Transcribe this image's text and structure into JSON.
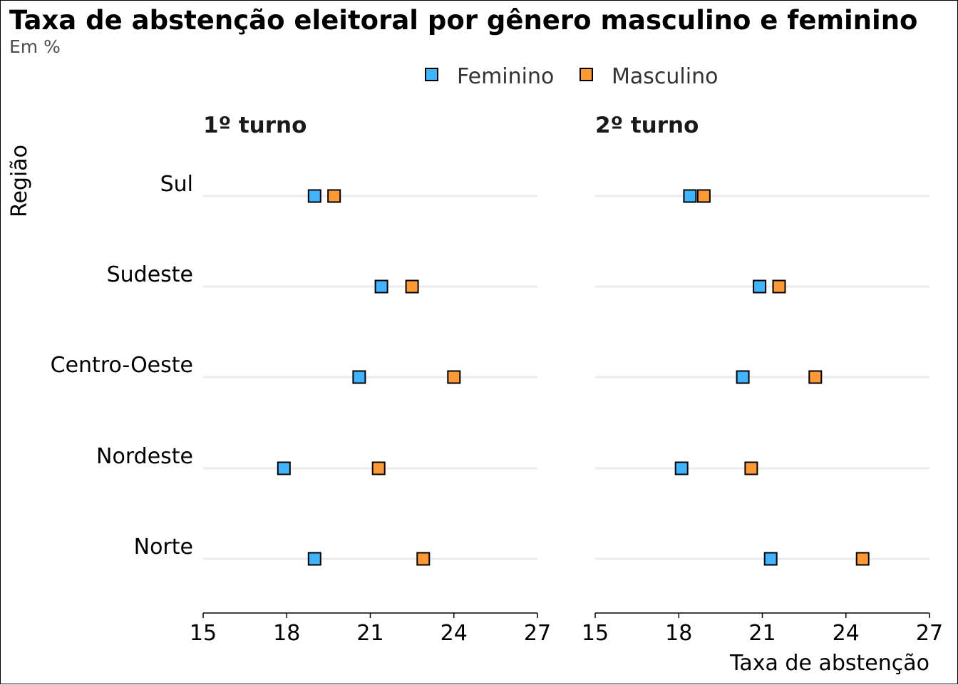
{
  "title": "Taxa de abstenção eleitoral por gênero masculino e feminino",
  "subtitle": "Em %",
  "chart_data": {
    "type": "scatter",
    "title": "Taxa de abstenção eleitoral por gênero masculino e feminino",
    "subtitle": "Em %",
    "xlabel": "Taxa de abstenção",
    "ylabel": "Região",
    "xlim": [
      15,
      27
    ],
    "x_ticks": [
      "15",
      "18",
      "21",
      "24",
      "27"
    ],
    "x_tick_values": [
      15,
      18,
      21,
      24,
      27
    ],
    "categories": [
      "Sul",
      "Sudeste",
      "Centro-Oeste",
      "Nordeste",
      "Norte"
    ],
    "legend": {
      "position": "top",
      "entries": [
        {
          "name": "Feminino",
          "color": "#3fb4ff"
        },
        {
          "name": "Masculino",
          "color": "#ff9933"
        }
      ]
    },
    "grid": "horizontal",
    "panels": [
      {
        "name": "1º turno",
        "series": [
          {
            "name": "Feminino",
            "color": "#3fb4ff",
            "values": [
              19.0,
              21.4,
              20.6,
              17.9,
              19.0
            ]
          },
          {
            "name": "Masculino",
            "color": "#ff9933",
            "values": [
              19.7,
              22.5,
              24.0,
              21.3,
              22.9
            ]
          }
        ]
      },
      {
        "name": "2º turno",
        "series": [
          {
            "name": "Feminino",
            "color": "#3fb4ff",
            "values": [
              18.4,
              20.9,
              20.3,
              18.1,
              21.3
            ]
          },
          {
            "name": "Masculino",
            "color": "#ff9933",
            "values": [
              18.9,
              21.6,
              22.9,
              20.6,
              24.6
            ]
          }
        ]
      }
    ]
  }
}
